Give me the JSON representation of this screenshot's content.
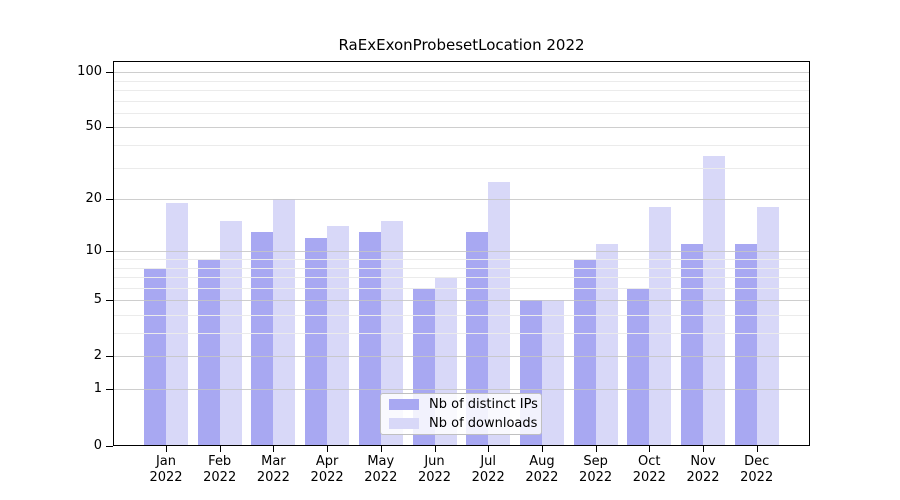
{
  "title": "RaExExonProbesetLocation 2022",
  "chart_data": {
    "type": "bar",
    "title": "RaExExonProbesetLocation 2022",
    "categories": [
      "Jan 2022",
      "Feb 2022",
      "Mar 2022",
      "Apr 2022",
      "May 2022",
      "Jun 2022",
      "Jul 2022",
      "Aug 2022",
      "Sep 2022",
      "Oct 2022",
      "Nov 2022",
      "Dec 2022"
    ],
    "x_tick_line1": [
      "Jan",
      "Feb",
      "Mar",
      "Apr",
      "May",
      "Jun",
      "Jul",
      "Aug",
      "Sep",
      "Oct",
      "Nov",
      "Dec"
    ],
    "x_tick_line2": [
      "2022",
      "2022",
      "2022",
      "2022",
      "2022",
      "2022",
      "2022",
      "2022",
      "2022",
      "2022",
      "2022",
      "2022"
    ],
    "series": [
      {
        "name": "Nb of distinct IPs",
        "color": "#a8a8f2",
        "values": [
          8,
          9,
          13,
          12,
          13,
          6,
          13,
          5,
          9,
          6,
          11,
          11
        ]
      },
      {
        "name": "Nb of downloads",
        "color": "#d8d8f8",
        "values": [
          19,
          15,
          20,
          14,
          15,
          7,
          25,
          5,
          11,
          18,
          35,
          18
        ]
      }
    ],
    "xlabel": "",
    "ylabel": "",
    "y_scale": "log1p",
    "ylim": [
      0,
      113
    ],
    "y_major_ticks": [
      100,
      50,
      20,
      10,
      5,
      2,
      1,
      0
    ],
    "y_minor_gridlines": [
      3,
      4,
      6,
      7,
      8,
      9,
      30,
      40,
      60,
      70,
      80,
      90
    ],
    "grid": "horizontal major+minor, drawn above bars",
    "legend_position": "lower center inside plot"
  },
  "legend": {
    "items": [
      {
        "label": "Nb of distinct IPs",
        "color": "#a8a8f2"
      },
      {
        "label": "Nb of downloads",
        "color": "#d8d8f8"
      }
    ]
  },
  "colors": {
    "series_dark": "#a8a8f2",
    "series_light": "#d8d8f8",
    "grid_major": "#c6c6c6",
    "grid_minor": "#ebebeb",
    "axis": "#000000",
    "background": "#ffffff"
  }
}
